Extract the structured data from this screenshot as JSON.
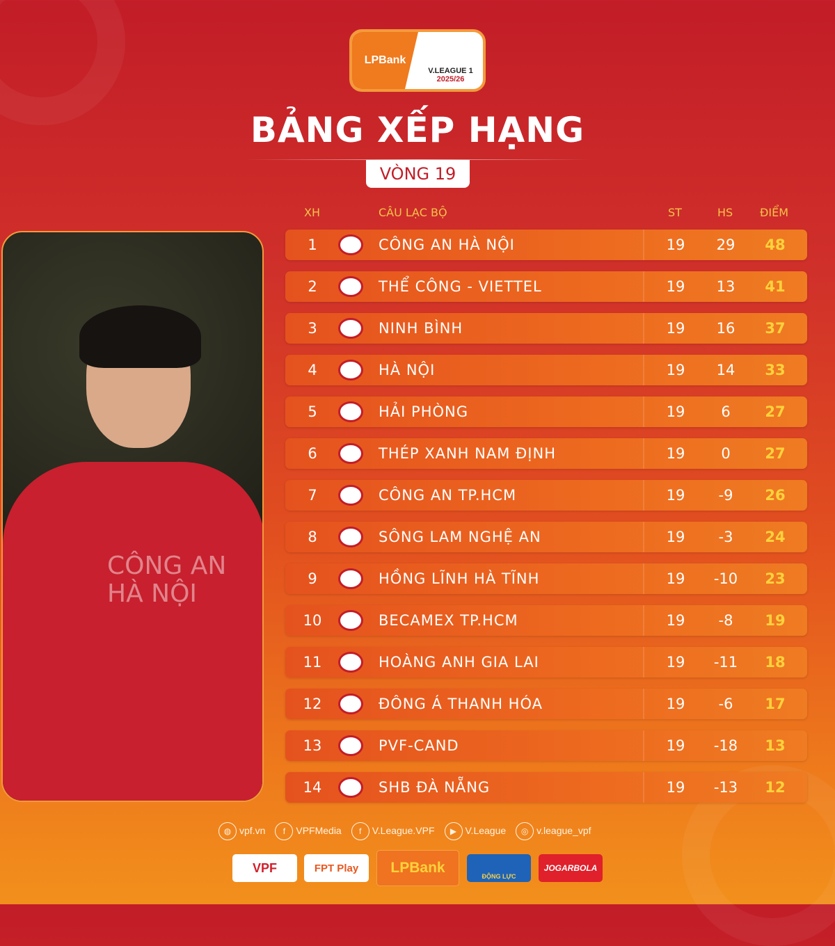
{
  "header": {
    "logo_sponsor": "LPBank",
    "logo_league": "V.LEAGUE 1",
    "logo_season": "2025/26",
    "title": "BẢNG XẾP HẠNG",
    "round": "VÒNG 19"
  },
  "columns": {
    "rank": "XH",
    "club": "CÂU LẠC BỘ",
    "played": "ST",
    "goal_diff": "HS",
    "points": "ĐIỂM"
  },
  "colors": {
    "points": "#ffd23c",
    "background_top": "#c21d28",
    "background_bottom": "#f2901c"
  },
  "photo": {
    "shirt_text": "CÔNG AN HÀ NỘI"
  },
  "standings": [
    {
      "rank": "1",
      "club": "CÔNG AN HÀ NỘI",
      "played": "19",
      "gd": "29",
      "pts": "48"
    },
    {
      "rank": "2",
      "club": "THỂ CÔNG - VIETTEL",
      "played": "19",
      "gd": "13",
      "pts": "41"
    },
    {
      "rank": "3",
      "club": "NINH BÌNH",
      "played": "19",
      "gd": "16",
      "pts": "37"
    },
    {
      "rank": "4",
      "club": "HÀ NỘI",
      "played": "19",
      "gd": "14",
      "pts": "33"
    },
    {
      "rank": "5",
      "club": "HẢI PHÒNG",
      "played": "19",
      "gd": "6",
      "pts": "27"
    },
    {
      "rank": "6",
      "club": "THÉP XANH NAM ĐỊNH",
      "played": "19",
      "gd": "0",
      "pts": "27"
    },
    {
      "rank": "7",
      "club": "CÔNG AN TP.HCM",
      "played": "19",
      "gd": "-9",
      "pts": "26"
    },
    {
      "rank": "8",
      "club": "SÔNG LAM NGHỆ AN",
      "played": "19",
      "gd": "-3",
      "pts": "24"
    },
    {
      "rank": "9",
      "club": "HỒNG LĨNH HÀ TĨNH",
      "played": "19",
      "gd": "-10",
      "pts": "23"
    },
    {
      "rank": "10",
      "club": "BECAMEX TP.HCM",
      "played": "19",
      "gd": "-8",
      "pts": "19"
    },
    {
      "rank": "11",
      "club": "HOÀNG ANH GIA LAI",
      "played": "19",
      "gd": "-11",
      "pts": "18"
    },
    {
      "rank": "12",
      "club": "ĐÔNG Á THANH HÓA",
      "played": "19",
      "gd": "-6",
      "pts": "17"
    },
    {
      "rank": "13",
      "club": "PVF-CAND",
      "played": "19",
      "gd": "-18",
      "pts": "13"
    },
    {
      "rank": "14",
      "club": "SHB ĐÀ NẴNG",
      "played": "19",
      "gd": "-13",
      "pts": "12"
    }
  ],
  "social": [
    {
      "icon": "globe-icon",
      "label": "vpf.vn"
    },
    {
      "icon": "facebook-icon",
      "label": "VPFMedia"
    },
    {
      "icon": "facebook-icon",
      "label": "V.League.VPF"
    },
    {
      "icon": "youtube-icon",
      "label": "V.League"
    },
    {
      "icon": "instagram-icon",
      "label": "v.league_vpf"
    }
  ],
  "sponsors": [
    "VPF",
    "FPT Play",
    "LPBank",
    "ĐỘNG LỰC",
    "JOGARBOLA"
  ]
}
